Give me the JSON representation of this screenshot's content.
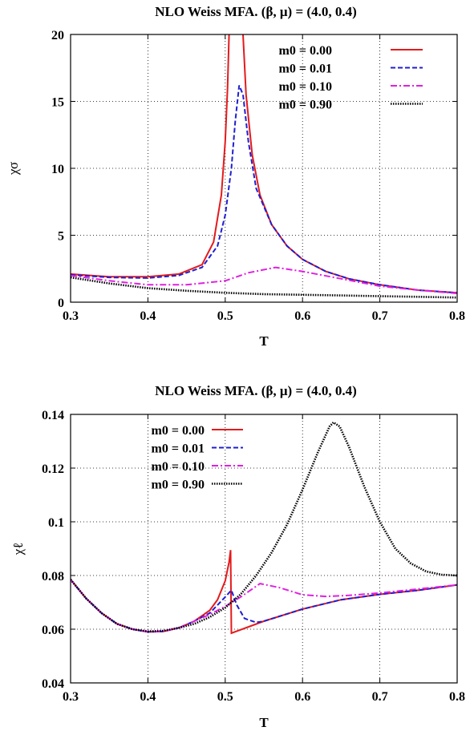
{
  "chart_data": [
    {
      "type": "line",
      "title": "NLO Weiss MFA. (β, μ) = (4.0, 0.4)",
      "xlabel": "T",
      "ylabel": "χσ",
      "xlim": [
        0.3,
        0.8
      ],
      "ylim": [
        0,
        20
      ],
      "xticks": [
        0.3,
        0.4,
        0.5,
        0.6,
        0.7,
        0.8
      ],
      "xtick_labels": [
        "0.3",
        "0.4",
        "0.5",
        "0.6",
        "0.7",
        "0.8"
      ],
      "yticks": [
        0,
        5,
        10,
        15,
        20
      ],
      "ytick_labels": [
        "0",
        "5",
        "10",
        "15",
        "20"
      ],
      "grid": true,
      "legend_position": "top-right",
      "series": [
        {
          "name": "m0 = 0.00",
          "color": "#e41a1c",
          "style": "solid",
          "points": [
            [
              0.3,
              2.1
            ],
            [
              0.35,
              1.9
            ],
            [
              0.4,
              1.9
            ],
            [
              0.44,
              2.1
            ],
            [
              0.47,
              2.8
            ],
            [
              0.485,
              4.5
            ],
            [
              0.495,
              8.0
            ],
            [
              0.5,
              12.0
            ],
            [
              0.503,
              16.0
            ],
            [
              0.505,
              20.0
            ],
            [
              null,
              null
            ],
            [
              0.523,
              20.0
            ],
            [
              0.527,
              15.5
            ],
            [
              0.535,
              11.0
            ],
            [
              0.545,
              8.0
            ],
            [
              0.56,
              5.8
            ],
            [
              0.58,
              4.2
            ],
            [
              0.6,
              3.2
            ],
            [
              0.63,
              2.3
            ],
            [
              0.66,
              1.75
            ],
            [
              0.7,
              1.3
            ],
            [
              0.75,
              0.9
            ],
            [
              0.8,
              0.7
            ]
          ]
        },
        {
          "name": "m0 = 0.01",
          "color": "#1f1fcf",
          "style": "dashed",
          "points": [
            [
              0.3,
              2.05
            ],
            [
              0.35,
              1.85
            ],
            [
              0.4,
              1.8
            ],
            [
              0.44,
              2.0
            ],
            [
              0.47,
              2.6
            ],
            [
              0.49,
              4.2
            ],
            [
              0.5,
              6.5
            ],
            [
              0.508,
              10.0
            ],
            [
              0.513,
              13.5
            ],
            [
              0.518,
              16.2
            ],
            [
              0.523,
              15.5
            ],
            [
              0.53,
              12.0
            ],
            [
              0.54,
              8.5
            ],
            [
              0.56,
              5.8
            ],
            [
              0.58,
              4.2
            ],
            [
              0.6,
              3.2
            ],
            [
              0.63,
              2.3
            ],
            [
              0.66,
              1.75
            ],
            [
              0.7,
              1.3
            ],
            [
              0.75,
              0.9
            ],
            [
              0.8,
              0.7
            ]
          ]
        },
        {
          "name": "m0 = 0.10",
          "color": "#e020e0",
          "style": "dashdot",
          "points": [
            [
              0.3,
              2.0
            ],
            [
              0.35,
              1.6
            ],
            [
              0.4,
              1.3
            ],
            [
              0.45,
              1.3
            ],
            [
              0.5,
              1.6
            ],
            [
              0.53,
              2.2
            ],
            [
              0.565,
              2.6
            ],
            [
              0.6,
              2.3
            ],
            [
              0.65,
              1.75
            ],
            [
              0.7,
              1.2
            ],
            [
              0.75,
              0.9
            ],
            [
              0.8,
              0.65
            ]
          ]
        },
        {
          "name": "m0 = 0.90",
          "color": "#000000",
          "style": "dotted",
          "points": [
            [
              0.3,
              1.85
            ],
            [
              0.35,
              1.4
            ],
            [
              0.4,
              1.05
            ],
            [
              0.45,
              0.85
            ],
            [
              0.5,
              0.7
            ],
            [
              0.55,
              0.6
            ],
            [
              0.6,
              0.55
            ],
            [
              0.65,
              0.5
            ],
            [
              0.7,
              0.45
            ],
            [
              0.75,
              0.4
            ],
            [
              0.8,
              0.35
            ]
          ]
        }
      ]
    },
    {
      "type": "line",
      "title": "NLO Weiss MFA. (β, μ) = (4.0, 0.4)",
      "xlabel": "T",
      "ylabel": "χℓ",
      "xlim": [
        0.3,
        0.8
      ],
      "ylim": [
        0.04,
        0.14
      ],
      "xticks": [
        0.3,
        0.4,
        0.5,
        0.6,
        0.7,
        0.8
      ],
      "xtick_labels": [
        "0.3",
        "0.4",
        "0.5",
        "0.6",
        "0.7",
        "0.8"
      ],
      "yticks": [
        0.04,
        0.06,
        0.08,
        0.1,
        0.12,
        0.14
      ],
      "ytick_labels": [
        "0.04",
        "0.06",
        "0.08",
        "0.1",
        "0.12",
        "0.14"
      ],
      "grid": true,
      "legend_position": "top-left",
      "series": [
        {
          "name": "m0 = 0.00",
          "color": "#e41a1c",
          "style": "solid",
          "points": [
            [
              0.3,
              0.0785
            ],
            [
              0.32,
              0.0715
            ],
            [
              0.34,
              0.066
            ],
            [
              0.36,
              0.062
            ],
            [
              0.38,
              0.06
            ],
            [
              0.4,
              0.059
            ],
            [
              0.42,
              0.0592
            ],
            [
              0.44,
              0.0605
            ],
            [
              0.46,
              0.063
            ],
            [
              0.48,
              0.067
            ],
            [
              0.49,
              0.071
            ],
            [
              0.5,
              0.078
            ],
            [
              0.505,
              0.085
            ],
            [
              0.507,
              0.0895
            ],
            [
              0.508,
              0.0585
            ],
            [
              0.55,
              0.063
            ],
            [
              0.6,
              0.0675
            ],
            [
              0.65,
              0.071
            ],
            [
              0.7,
              0.073
            ],
            [
              0.75,
              0.0745
            ],
            [
              0.8,
              0.0765
            ]
          ]
        },
        {
          "name": "m0 = 0.01",
          "color": "#1f1fcf",
          "style": "dashed",
          "points": [
            [
              0.3,
              0.0785
            ],
            [
              0.32,
              0.0715
            ],
            [
              0.34,
              0.066
            ],
            [
              0.36,
              0.062
            ],
            [
              0.38,
              0.06
            ],
            [
              0.4,
              0.059
            ],
            [
              0.42,
              0.0592
            ],
            [
              0.44,
              0.0605
            ],
            [
              0.46,
              0.063
            ],
            [
              0.48,
              0.066
            ],
            [
              0.49,
              0.069
            ],
            [
              0.5,
              0.072
            ],
            [
              0.508,
              0.0745
            ],
            [
              0.515,
              0.069
            ],
            [
              0.525,
              0.064
            ],
            [
              0.54,
              0.0625
            ],
            [
              0.55,
              0.063
            ],
            [
              0.6,
              0.0675
            ],
            [
              0.65,
              0.071
            ],
            [
              0.7,
              0.073
            ],
            [
              0.75,
              0.0745
            ],
            [
              0.8,
              0.0765
            ]
          ]
        },
        {
          "name": "m0 = 0.10",
          "color": "#e020e0",
          "style": "dashdot",
          "points": [
            [
              0.3,
              0.0785
            ],
            [
              0.32,
              0.0715
            ],
            [
              0.34,
              0.066
            ],
            [
              0.36,
              0.062
            ],
            [
              0.38,
              0.06
            ],
            [
              0.4,
              0.059
            ],
            [
              0.42,
              0.0592
            ],
            [
              0.44,
              0.0605
            ],
            [
              0.46,
              0.063
            ],
            [
              0.48,
              0.0655
            ],
            [
              0.5,
              0.0685
            ],
            [
              0.52,
              0.072
            ],
            [
              0.545,
              0.077
            ],
            [
              0.57,
              0.0755
            ],
            [
              0.6,
              0.0728
            ],
            [
              0.63,
              0.0722
            ],
            [
              0.66,
              0.0726
            ],
            [
              0.7,
              0.0735
            ],
            [
              0.75,
              0.075
            ],
            [
              0.8,
              0.0765
            ]
          ]
        },
        {
          "name": "m0 = 0.90",
          "color": "#000000",
          "style": "dotted",
          "points": [
            [
              0.3,
              0.0785
            ],
            [
              0.32,
              0.0715
            ],
            [
              0.34,
              0.066
            ],
            [
              0.36,
              0.062
            ],
            [
              0.38,
              0.06
            ],
            [
              0.4,
              0.0592
            ],
            [
              0.42,
              0.0594
            ],
            [
              0.44,
              0.0605
            ],
            [
              0.46,
              0.062
            ],
            [
              0.48,
              0.0645
            ],
            [
              0.5,
              0.068
            ],
            [
              0.52,
              0.073
            ],
            [
              0.54,
              0.08
            ],
            [
              0.56,
              0.0885
            ],
            [
              0.58,
              0.099
            ],
            [
              0.6,
              0.112
            ],
            [
              0.62,
              0.126
            ],
            [
              0.635,
              0.1355
            ],
            [
              0.64,
              0.137
            ],
            [
              0.648,
              0.1355
            ],
            [
              0.66,
              0.128
            ],
            [
              0.68,
              0.113
            ],
            [
              0.7,
              0.1
            ],
            [
              0.72,
              0.09
            ],
            [
              0.74,
              0.0845
            ],
            [
              0.76,
              0.0815
            ],
            [
              0.78,
              0.0803
            ],
            [
              0.8,
              0.08
            ]
          ]
        }
      ]
    }
  ]
}
